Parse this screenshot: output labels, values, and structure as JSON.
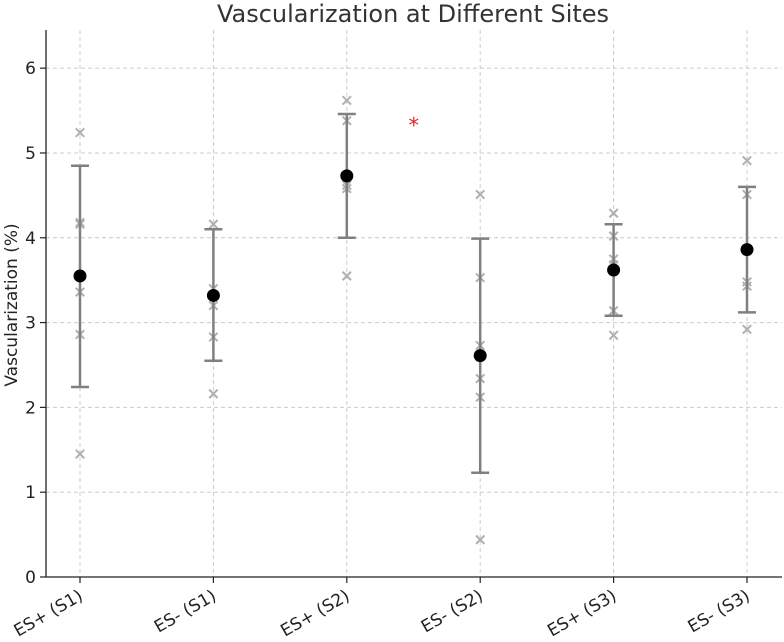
{
  "chart_data": {
    "type": "scatter",
    "title": "Vascularization at Different Sites",
    "xlabel": "",
    "ylabel": "Vascularization (%)",
    "ylim": [
      0,
      6.45
    ],
    "yticks": [
      0,
      1,
      2,
      3,
      4,
      5,
      6
    ],
    "grid": true,
    "categories": [
      "ES+ (S1)",
      "ES- (S1)",
      "ES+ (S2)",
      "ES- (S2)",
      "ES+ (S3)",
      "ES- (S3)"
    ],
    "means": [
      3.55,
      3.32,
      4.73,
      2.61,
      3.62,
      3.86
    ],
    "error_low": [
      2.24,
      2.55,
      4.0,
      1.23,
      3.08,
      3.12
    ],
    "error_high": [
      4.85,
      4.1,
      5.46,
      3.99,
      4.16,
      4.6
    ],
    "points": [
      [
        5.24,
        4.18,
        4.16,
        3.36,
        2.86,
        1.45
      ],
      [
        4.16,
        3.4,
        3.2,
        2.83,
        2.16
      ],
      [
        5.62,
        5.38,
        4.62,
        4.58,
        3.55
      ],
      [
        4.51,
        3.53,
        2.73,
        2.34,
        2.12,
        0.44
      ],
      [
        4.29,
        4.02,
        3.75,
        3.68,
        3.14,
        2.85
      ],
      [
        4.91,
        4.51,
        3.48,
        3.43,
        2.92
      ]
    ],
    "significance": {
      "symbol": "*",
      "near": "ES+ (S2)",
      "y": 5.35,
      "color": "#d62728"
    },
    "colors": {
      "mean": "#000000",
      "errorbar": "#808080",
      "points": "#b0b0b0",
      "grid": "#cccccc"
    }
  }
}
